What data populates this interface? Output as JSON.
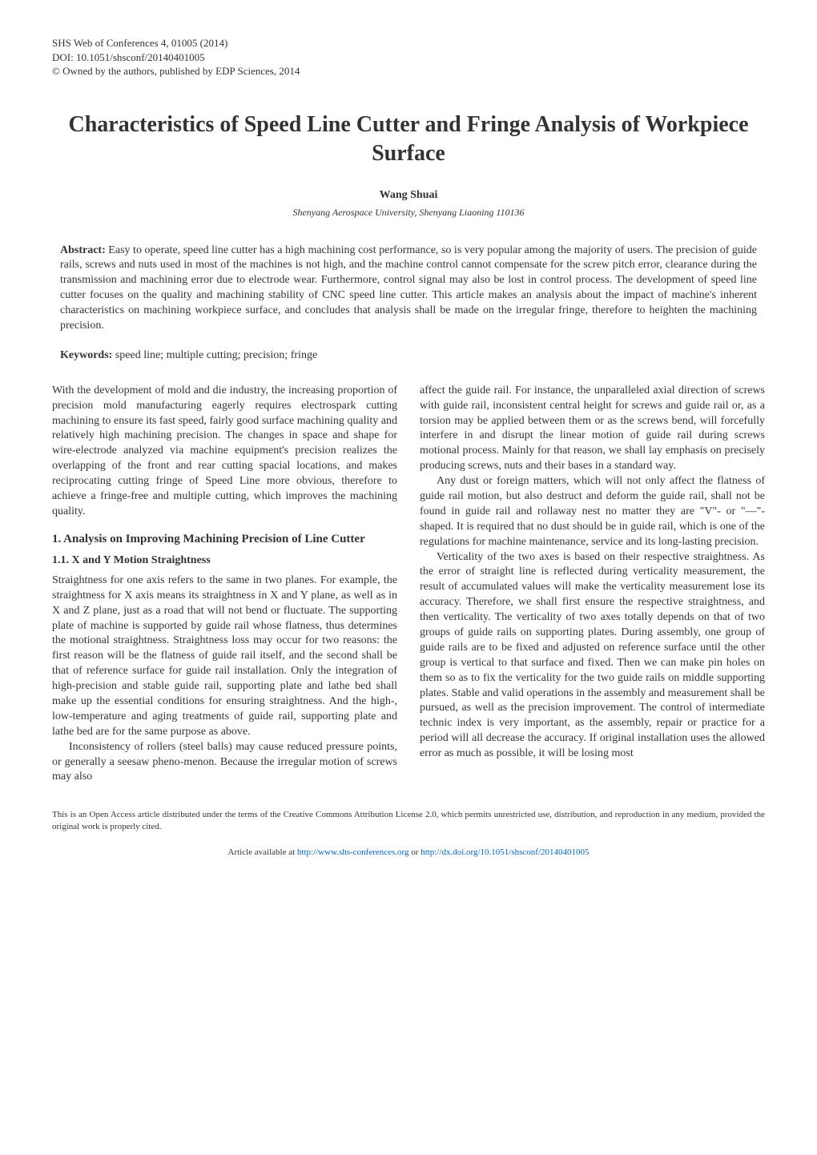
{
  "meta": {
    "line1": "SHS Web of Conferences 4, 01005 (2014)",
    "line2": "DOI: 10.1051/shsconf/20140401005",
    "line3": "© Owned by the authors, published by EDP Sciences, 2014"
  },
  "title": "Characteristics of Speed Line Cutter and Fringe Analysis of Workpiece Surface",
  "author": "Wang Shuai",
  "affiliation": "Shenyang Aerospace University, Shenyang Liaoning 110136",
  "abstract": {
    "label": "Abstract:",
    "text": " Easy to operate, speed line cutter has a high machining cost performance, so is very popular among the majority of users. The precision of guide rails, screws and nuts used in most of the machines is not high, and the machine control cannot compensate for the screw pitch error, clearance during the transmission and machining error due to electrode wear. Furthermore, control signal may also be lost in control process. The development of speed line cutter focuses on the quality and machining stability of CNC speed line cutter. This article makes an analysis about the impact of machine's inherent characteristics on machining workpiece surface, and concludes that analysis shall be made on the irregular fringe, therefore to heighten the machining precision."
  },
  "keywords": {
    "label": "Keywords:",
    "text": " speed line; multiple cutting; precision; fringe"
  },
  "body": {
    "intro": "With the development of mold and die industry, the increasing proportion of precision mold manufacturing eagerly requires electrospark cutting machining to ensure its fast speed, fairly good surface machining quality and relatively high machining precision. The changes in space and shape for wire-electrode analyzed via machine equipment's precision realizes the overlapping of the front and rear cutting spacial locations, and makes reciprocating cutting fringe of Speed Line more obvious, therefore to achieve a fringe-free and multiple cutting, which improves the machining quality.",
    "h1": "1. Analysis on Improving Machining Precision of Line Cutter",
    "h1_1": "1.1. X and Y Motion Straightness",
    "p1": "Straightness for one axis refers to the same in two planes. For example, the straightness for X axis means its straightness in X and Y plane, as well as in X and Z plane, just as a road that will not bend or fluctuate. The supporting plate of machine is supported by guide rail whose flatness, thus determines the motional straightness. Straightness loss may occur for two reasons: the first reason will be the flatness of guide rail itself, and the second shall be that of reference surface for guide rail installation. Only the integration of high-precision and stable guide rail, supporting plate and lathe bed shall make up the essential conditions for ensuring straightness. And the high-, low-temperature and aging treatments of guide rail, supporting plate and lathe bed are for the same purpose as above.",
    "p2": "Inconsistency of rollers (steel balls) may cause reduced pressure points, or generally a seesaw pheno-menon. Because the irregular motion of screws may also",
    "p3": "affect the guide rail. For instance, the unparalleled axial direction of screws with guide rail, inconsistent central height for screws and guide rail or, as a torsion may be applied between them or as the screws bend, will forcefully interfere in and disrupt the linear motion of guide rail during screws motional process. Mainly for that reason, we shall lay emphasis on precisely producing screws, nuts and their bases in a standard way.",
    "p4": "Any dust or foreign matters, which will not only affect the flatness of guide rail motion, but also destruct and deform the guide rail, shall not be found in guide rail and rollaway nest no matter they are \"V\"- or \"—\"-shaped. It is required that no dust should be in guide rail, which is one of the regulations for machine maintenance, service and its long-lasting precision.",
    "p5": "Verticality of the two axes is based on their respective straightness. As the error of straight line is reflected during verticality measurement, the result of accumulated values will make the verticality measurement lose its accuracy. Therefore, we shall first ensure the respective straightness, and then verticality. The verticality of two axes totally depends on that of two groups of guide rails on supporting plates. During assembly, one group of guide rails are to be fixed and adjusted on reference surface until the other group is vertical to that surface and fixed. Then we can make pin holes on them so as to fix the verticality for the two guide rails on middle supporting plates. Stable and valid operations in the assembly and measurement shall be pursued, as well as the precision improvement. The control of intermediate technic index is very important, as the assembly, repair or practice for a period will all decrease the accuracy. If original installation uses the allowed error as much as possible, it will be losing most"
  },
  "license": "This is an Open Access article distributed under the terms of the Creative Commons Attribution License 2.0, which permits unrestricted use, distribution, and reproduction in any medium, provided the original work is properly cited.",
  "footer": {
    "prefix": "Article available at ",
    "url1": "http://www.shs-conferences.org",
    "middle": " or ",
    "url2": "http://dx.doi.org/10.1051/shsconf/20140401005"
  }
}
